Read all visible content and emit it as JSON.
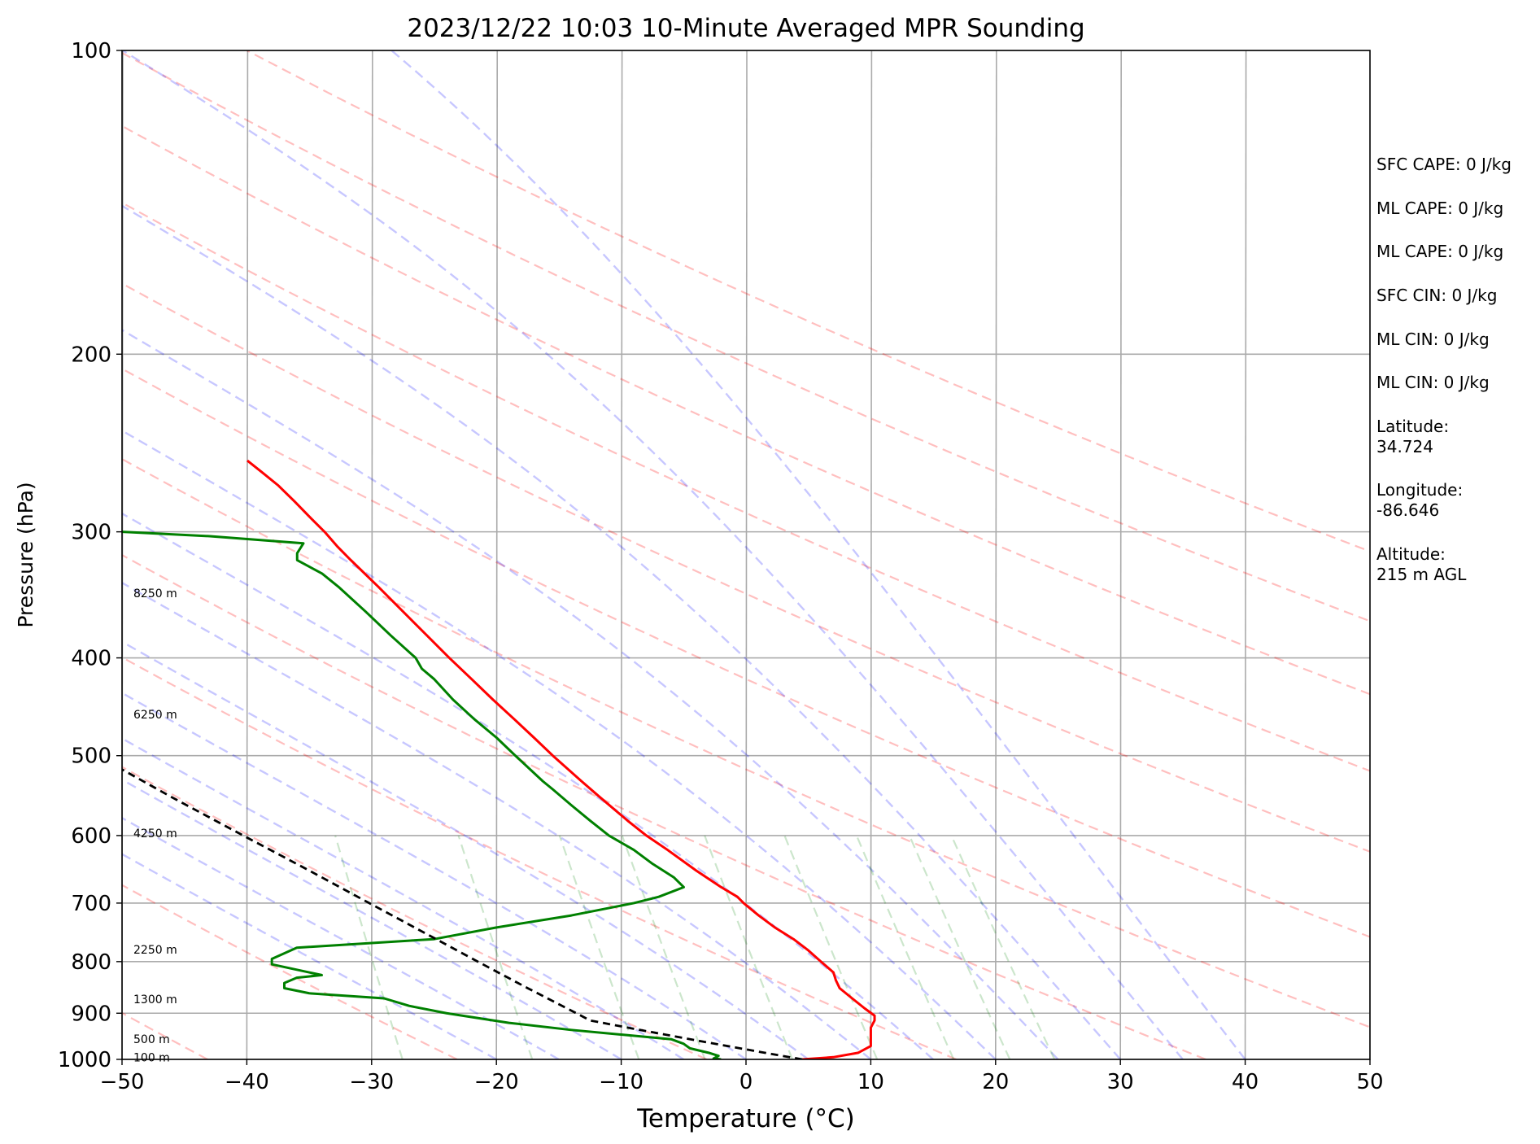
{
  "chart_data": {
    "type": "line",
    "title": "2023/12/22 10:03 10-Minute Averaged MPR Sounding",
    "xlabel": "Temperature (°C)",
    "ylabel": "Pressure (hPa)",
    "xlim": [
      -50,
      50
    ],
    "ylim": [
      1000,
      100
    ],
    "y_scale": "log",
    "skew": 45,
    "x_ticks": [
      "−50",
      "−40",
      "−30",
      "−20",
      "−10",
      "0",
      "10",
      "20",
      "30",
      "40",
      "50"
    ],
    "x_tick_values": [
      -50,
      -40,
      -30,
      -20,
      -10,
      0,
      10,
      20,
      30,
      40,
      50
    ],
    "y_ticks": [
      "100",
      "200",
      "300",
      "400",
      "500",
      "600",
      "700",
      "800",
      "900",
      "1000"
    ],
    "y_tick_values": [
      100,
      200,
      300,
      400,
      500,
      600,
      700,
      800,
      900,
      1000
    ],
    "grid": true,
    "dry_adiabat_thetas_K": [
      170,
      190,
      210,
      230,
      250,
      270,
      290,
      310,
      330,
      350,
      370,
      390,
      410,
      430,
      450
    ],
    "moist_adiabat_start_C": [
      -20,
      -15,
      -10,
      -5,
      0,
      5,
      10,
      15,
      20,
      25,
      30,
      35,
      40
    ],
    "mixing_ratio_lines_gkg": [
      0.4,
      1,
      2,
      3,
      5,
      8,
      12,
      16,
      20
    ],
    "height_labels": [
      {
        "text": "100 m",
        "p": 995
      },
      {
        "text": "500 m",
        "p": 955
      },
      {
        "text": "1300 m",
        "p": 872
      },
      {
        "text": "2250 m",
        "p": 778
      },
      {
        "text": "4250 m",
        "p": 597
      },
      {
        "text": "6250 m",
        "p": 455
      },
      {
        "text": "8250 m",
        "p": 345
      }
    ],
    "series": [
      {
        "role": "temperature",
        "color": "#ff0000",
        "points": [
          [
            1000,
            4.5
          ],
          [
            995,
            7.0
          ],
          [
            985,
            9.0
          ],
          [
            970,
            10.0
          ],
          [
            950,
            10.0
          ],
          [
            930,
            10.0
          ],
          [
            915,
            10.3
          ],
          [
            905,
            10.3
          ],
          [
            890,
            9.5
          ],
          [
            870,
            8.5
          ],
          [
            850,
            7.5
          ],
          [
            835,
            7.2
          ],
          [
            820,
            7.0
          ],
          [
            800,
            6.0
          ],
          [
            780,
            5.0
          ],
          [
            760,
            3.8
          ],
          [
            740,
            2.3
          ],
          [
            720,
            1.0
          ],
          [
            700,
            -0.2
          ],
          [
            690,
            -0.7
          ],
          [
            675,
            -2.0
          ],
          [
            650,
            -4.0
          ],
          [
            620,
            -6.3
          ],
          [
            600,
            -8.0
          ],
          [
            580,
            -9.5
          ],
          [
            550,
            -11.7
          ],
          [
            530,
            -13.2
          ],
          [
            500,
            -15.5
          ],
          [
            480,
            -17.0
          ],
          [
            460,
            -18.6
          ],
          [
            440,
            -20.3
          ],
          [
            420,
            -22.0
          ],
          [
            400,
            -23.8
          ],
          [
            380,
            -25.6
          ],
          [
            360,
            -27.5
          ],
          [
            340,
            -29.5
          ],
          [
            320,
            -31.7
          ],
          [
            310,
            -32.8
          ],
          [
            300,
            -33.8
          ],
          [
            290,
            -35.0
          ],
          [
            280,
            -36.2
          ],
          [
            270,
            -37.5
          ],
          [
            262,
            -38.8
          ],
          [
            255,
            -40.0
          ]
        ]
      },
      {
        "role": "dewpoint",
        "color": "#008000",
        "points": [
          [
            1000,
            -2.0
          ],
          [
            998,
            -2.6
          ],
          [
            992,
            -2.2
          ],
          [
            985,
            -3.0
          ],
          [
            975,
            -4.5
          ],
          [
            965,
            -5.0
          ],
          [
            955,
            -6.0
          ],
          [
            945,
            -10.0
          ],
          [
            935,
            -14.0
          ],
          [
            920,
            -19.0
          ],
          [
            900,
            -24.0
          ],
          [
            885,
            -27.0
          ],
          [
            870,
            -29.0
          ],
          [
            860,
            -35.0
          ],
          [
            850,
            -37.0
          ],
          [
            840,
            -37.0
          ],
          [
            830,
            -36.0
          ],
          [
            825,
            -34.0
          ],
          [
            815,
            -36.0
          ],
          [
            805,
            -38.0
          ],
          [
            795,
            -38.0
          ],
          [
            785,
            -37.0
          ],
          [
            775,
            -36.0
          ],
          [
            760,
            -25.0
          ],
          [
            740,
            -20.0
          ],
          [
            720,
            -14.0
          ],
          [
            700,
            -9.0
          ],
          [
            690,
            -7.0
          ],
          [
            675,
            -5.0
          ],
          [
            660,
            -5.8
          ],
          [
            640,
            -7.5
          ],
          [
            620,
            -9.0
          ],
          [
            600,
            -11.0
          ],
          [
            580,
            -12.5
          ],
          [
            560,
            -14.0
          ],
          [
            540,
            -15.5
          ],
          [
            530,
            -16.3
          ],
          [
            500,
            -18.5
          ],
          [
            480,
            -20.0
          ],
          [
            460,
            -21.8
          ],
          [
            440,
            -23.5
          ],
          [
            420,
            -25.0
          ],
          [
            410,
            -26.0
          ],
          [
            400,
            -26.5
          ],
          [
            380,
            -28.5
          ],
          [
            360,
            -30.5
          ],
          [
            340,
            -32.7
          ],
          [
            330,
            -34.0
          ],
          [
            320,
            -36.0
          ],
          [
            315,
            -36.0
          ],
          [
            308,
            -35.5
          ],
          [
            303,
            -43.0
          ],
          [
            300,
            -50.0
          ],
          [
            296,
            -64.0
          ],
          [
            290,
            -82.0
          ],
          [
            287,
            -86.0
          ]
        ]
      },
      {
        "role": "parcel",
        "color": "#000000",
        "points": [
          [
            1000,
            4.5
          ],
          [
            985,
            1.5
          ],
          [
            960,
            -3.5
          ],
          [
            935,
            -8.5
          ],
          [
            915,
            -12.5
          ],
          [
            900,
            -13.6
          ],
          [
            850,
            -17.5
          ],
          [
            800,
            -21.5
          ],
          [
            750,
            -25.7
          ],
          [
            700,
            -30.2
          ],
          [
            650,
            -35.0
          ],
          [
            600,
            -40.3
          ],
          [
            550,
            -46.0
          ],
          [
            500,
            -52.0
          ],
          [
            450,
            -58.6
          ],
          [
            400,
            -65.8
          ],
          [
            350,
            -73.7
          ],
          [
            300,
            -82.0
          ],
          [
            265,
            -88.5
          ]
        ]
      }
    ]
  },
  "annotations": [
    {
      "text": "SFC CAPE: 0 J/kg"
    },
    {
      "text": "ML CAPE: 0 J/kg"
    },
    {
      "text": "ML CAPE: 0 J/kg"
    },
    {
      "text": "SFC CIN: 0 J/kg"
    },
    {
      "text": "ML CIN: 0 J/kg"
    },
    {
      "text": "ML CIN: 0 J/kg"
    },
    {
      "text": "Latitude:\n34.724"
    },
    {
      "text": "Longitude:\n-86.646"
    },
    {
      "text": "Altitude:\n215 m AGL"
    }
  ]
}
